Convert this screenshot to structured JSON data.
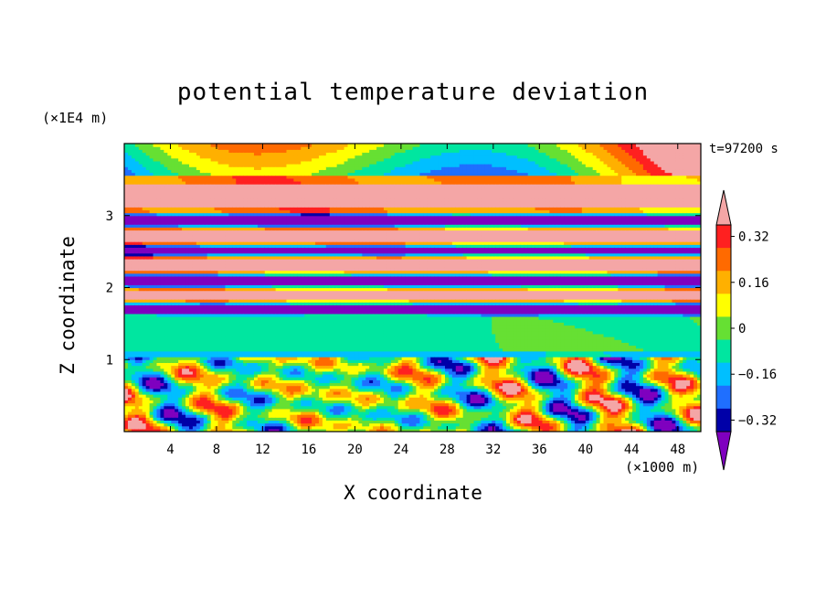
{
  "chart_data": {
    "type": "heatmap",
    "title": "potential temperature deviation",
    "xlabel": "X coordinate",
    "ylabel": "Z coordinate",
    "x_unit": "(×1000 m)",
    "z_unit": "(×1E4 m)",
    "time_label": "t=97200 s",
    "xlim": [
      0,
      50
    ],
    "ylim": [
      0,
      4
    ],
    "x_ticks": [
      4,
      8,
      12,
      16,
      20,
      24,
      28,
      32,
      36,
      40,
      44,
      48
    ],
    "y_ticks": [
      1,
      2,
      3
    ],
    "colorbar": {
      "tick_values": [
        0.32,
        0.16,
        0,
        -0.16,
        -0.32
      ],
      "tick_labels": [
        "0.32",
        "0.16",
        "0",
        "−0.16",
        "−0.32"
      ],
      "colors": [
        "#7f00bf",
        "#0000a8",
        "#1f6fff",
        "#00bfff",
        "#00e6a0",
        "#66e033",
        "#ffff00",
        "#ffb000",
        "#ff6a00",
        "#ff2020",
        "#f4a6a6"
      ],
      "extend": "both"
    },
    "bands": [
      {
        "z0": 3.55,
        "z1": 4.0,
        "level": "mixed-top"
      },
      {
        "z0": 3.05,
        "z1": 3.55,
        "level": 0.4
      },
      {
        "z0": 2.85,
        "z1": 3.05,
        "level": -0.4
      },
      {
        "z0": 2.6,
        "z1": 2.85,
        "level": 0.4
      },
      {
        "z0": 2.45,
        "z1": 2.6,
        "level": -0.4
      },
      {
        "z0": 2.2,
        "z1": 2.45,
        "level": 0.4
      },
      {
        "z0": 2.0,
        "z1": 2.2,
        "level": -0.4
      },
      {
        "z0": 1.8,
        "z1": 2.0,
        "level": 0.4
      },
      {
        "z0": 1.6,
        "z1": 1.8,
        "level": -0.4
      },
      {
        "z0": 1.05,
        "z1": 1.6,
        "level": -0.05
      },
      {
        "z0": 0.0,
        "z1": 1.05,
        "level": "turbulent"
      }
    ]
  }
}
